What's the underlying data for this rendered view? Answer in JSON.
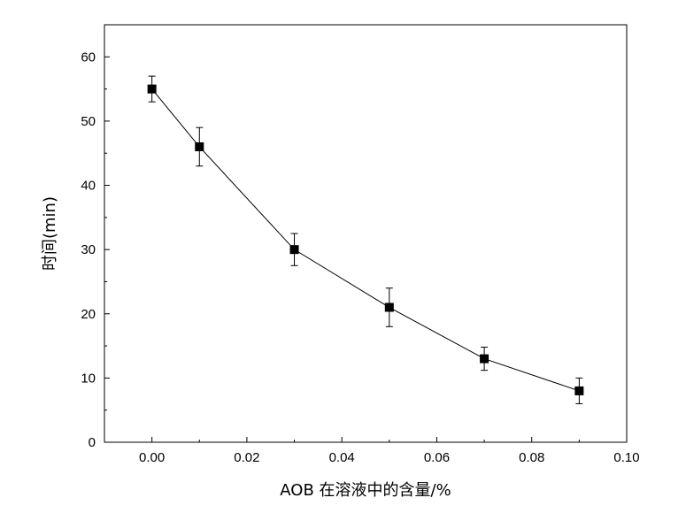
{
  "chart_data": {
    "type": "line",
    "title": "",
    "xlabel": "AOB 在溶液中的含量/%",
    "ylabel": "时间(min)",
    "xlim": [
      -0.01,
      0.1
    ],
    "ylim": [
      0,
      65
    ],
    "x_ticks": [
      0.0,
      0.02,
      0.04,
      0.06,
      0.08,
      0.1
    ],
    "x_tick_labels": [
      "0.00",
      "0.02",
      "0.04",
      "0.06",
      "0.08",
      "0.10"
    ],
    "y_ticks": [
      0,
      10,
      20,
      30,
      40,
      50,
      60
    ],
    "y_tick_labels": [
      "0",
      "10",
      "20",
      "30",
      "40",
      "50",
      "60"
    ],
    "grid": false,
    "legend": "none",
    "series": [
      {
        "x": [
          0.0,
          0.01,
          0.03,
          0.05,
          0.07,
          0.09
        ],
        "y": [
          55,
          46,
          30,
          21,
          13,
          8
        ],
        "error": [
          2,
          3,
          2.5,
          3,
          1.8,
          2
        ],
        "marker": "square",
        "color": "#000000"
      }
    ]
  }
}
